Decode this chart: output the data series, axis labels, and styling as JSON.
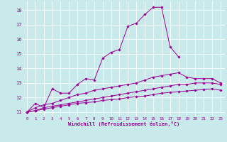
{
  "background_color": "#c8eaea",
  "grid_color": "#b0d8d8",
  "line_color": "#990099",
  "marker_color": "#990099",
  "xlabel": "Windchill (Refroidissement éolien,°C)",
  "xlabel_color": "#990099",
  "tick_color": "#990099",
  "xlim": [
    -0.5,
    23.5
  ],
  "ylim": [
    10.7,
    18.6
  ],
  "yticks": [
    11,
    12,
    13,
    14,
    15,
    16,
    17,
    18
  ],
  "xticks": [
    0,
    1,
    2,
    3,
    4,
    5,
    6,
    7,
    8,
    9,
    10,
    11,
    12,
    13,
    14,
    15,
    16,
    17,
    18,
    19,
    20,
    21,
    22,
    23
  ],
  "series": [
    {
      "x": [
        0,
        1,
        2,
        3,
        4,
        5,
        6,
        7,
        8,
        9,
        10,
        11,
        12,
        13,
        14,
        15,
        16,
        17,
        18
      ],
      "y": [
        11.0,
        11.6,
        11.3,
        12.6,
        12.3,
        12.3,
        12.9,
        13.3,
        13.2,
        14.7,
        15.1,
        15.3,
        16.9,
        17.1,
        17.7,
        18.2,
        18.2,
        15.5,
        14.8
      ]
    },
    {
      "x": [
        0,
        1,
        2,
        3,
        4,
        5,
        6,
        7,
        8,
        9,
        10,
        11,
        12,
        13,
        14,
        15,
        16,
        17,
        18,
        19,
        20,
        21,
        22,
        23
      ],
      "y": [
        11.0,
        11.3,
        11.5,
        11.6,
        11.8,
        12.0,
        12.2,
        12.3,
        12.5,
        12.6,
        12.7,
        12.8,
        12.9,
        13.0,
        13.2,
        13.4,
        13.5,
        13.6,
        13.7,
        13.4,
        13.3,
        13.3,
        13.3,
        13.0
      ]
    },
    {
      "x": [
        0,
        1,
        2,
        3,
        4,
        5,
        6,
        7,
        8,
        9,
        10,
        11,
        12,
        13,
        14,
        15,
        16,
        17,
        18,
        19,
        20,
        21,
        22,
        23
      ],
      "y": [
        11.0,
        11.1,
        11.3,
        11.4,
        11.5,
        11.6,
        11.7,
        11.8,
        11.9,
        12.0,
        12.1,
        12.2,
        12.3,
        12.4,
        12.5,
        12.6,
        12.7,
        12.8,
        12.9,
        12.9,
        13.0,
        13.0,
        13.0,
        12.9
      ]
    },
    {
      "x": [
        0,
        1,
        2,
        3,
        4,
        5,
        6,
        7,
        8,
        9,
        10,
        11,
        12,
        13,
        14,
        15,
        16,
        17,
        18,
        19,
        20,
        21,
        22,
        23
      ],
      "y": [
        11.0,
        11.1,
        11.2,
        11.3,
        11.4,
        11.5,
        11.6,
        11.65,
        11.7,
        11.8,
        11.85,
        11.9,
        12.0,
        12.05,
        12.1,
        12.2,
        12.3,
        12.35,
        12.4,
        12.45,
        12.5,
        12.55,
        12.6,
        12.5
      ]
    }
  ]
}
